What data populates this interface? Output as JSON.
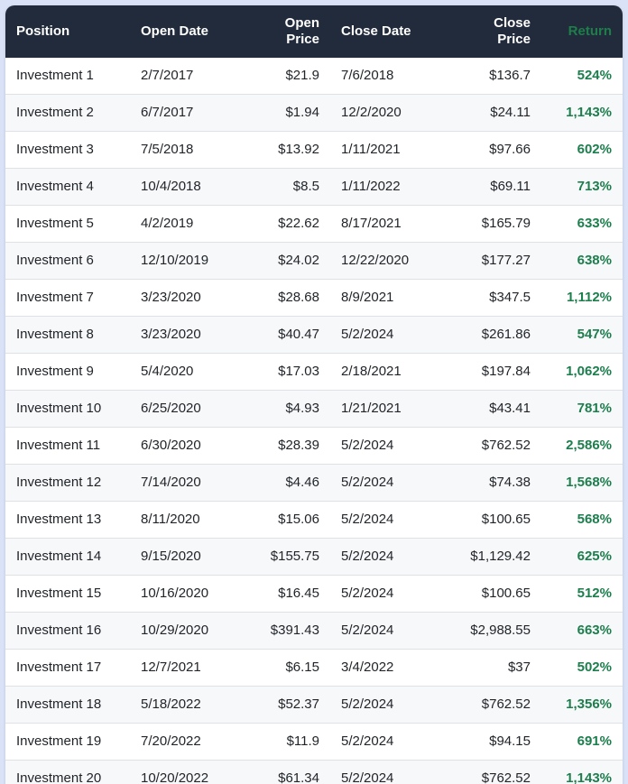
{
  "colors": {
    "page_background": "#d9e2f6",
    "card_background": "#ffffff",
    "header_background": "#212b3b",
    "header_text": "#ffffff",
    "return_green": "#1d7e4d",
    "body_text": "#212529",
    "row_stripe": "#f7f8fa",
    "row_divider": "#dee2e6"
  },
  "table": {
    "columns": [
      {
        "key": "position",
        "label": "Position",
        "align": "left"
      },
      {
        "key": "open_date",
        "label": "Open Date",
        "align": "left"
      },
      {
        "key": "open_price",
        "label": "Open Price",
        "align": "right"
      },
      {
        "key": "close_date",
        "label": "Close Date",
        "align": "left"
      },
      {
        "key": "close_price",
        "label": "Close Price",
        "align": "right"
      },
      {
        "key": "return",
        "label": "Return",
        "align": "right"
      }
    ],
    "rows": [
      {
        "position": "Investment 1",
        "open_date": "2/7/2017",
        "open_price": "$21.9",
        "close_date": "7/6/2018",
        "close_price": "$136.7",
        "return": "524%"
      },
      {
        "position": "Investment 2",
        "open_date": "6/7/2017",
        "open_price": "$1.94",
        "close_date": "12/2/2020",
        "close_price": "$24.11",
        "return": "1,143%"
      },
      {
        "position": "Investment 3",
        "open_date": "7/5/2018",
        "open_price": "$13.92",
        "close_date": "1/11/2021",
        "close_price": "$97.66",
        "return": "602%"
      },
      {
        "position": "Investment 4",
        "open_date": "10/4/2018",
        "open_price": "$8.5",
        "close_date": "1/11/2022",
        "close_price": "$69.11",
        "return": "713%"
      },
      {
        "position": "Investment 5",
        "open_date": "4/2/2019",
        "open_price": "$22.62",
        "close_date": "8/17/2021",
        "close_price": "$165.79",
        "return": "633%"
      },
      {
        "position": "Investment 6",
        "open_date": "12/10/2019",
        "open_price": "$24.02",
        "close_date": "12/22/2020",
        "close_price": "$177.27",
        "return": "638%"
      },
      {
        "position": "Investment 7",
        "open_date": "3/23/2020",
        "open_price": "$28.68",
        "close_date": "8/9/2021",
        "close_price": "$347.5",
        "return": "1,112%"
      },
      {
        "position": "Investment 8",
        "open_date": "3/23/2020",
        "open_price": "$40.47",
        "close_date": "5/2/2024",
        "close_price": "$261.86",
        "return": "547%"
      },
      {
        "position": "Investment 9",
        "open_date": "5/4/2020",
        "open_price": "$17.03",
        "close_date": "2/18/2021",
        "close_price": "$197.84",
        "return": "1,062%"
      },
      {
        "position": "Investment 10",
        "open_date": "6/25/2020",
        "open_price": "$4.93",
        "close_date": "1/21/2021",
        "close_price": "$43.41",
        "return": "781%"
      },
      {
        "position": "Investment 11",
        "open_date": "6/30/2020",
        "open_price": "$28.39",
        "close_date": "5/2/2024",
        "close_price": "$762.52",
        "return": "2,586%"
      },
      {
        "position": "Investment 12",
        "open_date": "7/14/2020",
        "open_price": "$4.46",
        "close_date": "5/2/2024",
        "close_price": "$74.38",
        "return": "1,568%"
      },
      {
        "position": "Investment 13",
        "open_date": "8/11/2020",
        "open_price": "$15.06",
        "close_date": "5/2/2024",
        "close_price": "$100.65",
        "return": "568%"
      },
      {
        "position": "Investment 14",
        "open_date": "9/15/2020",
        "open_price": "$155.75",
        "close_date": "5/2/2024",
        "close_price": "$1,129.42",
        "return": "625%"
      },
      {
        "position": "Investment 15",
        "open_date": "10/16/2020",
        "open_price": "$16.45",
        "close_date": "5/2/2024",
        "close_price": "$100.65",
        "return": "512%"
      },
      {
        "position": "Investment 16",
        "open_date": "10/29/2020",
        "open_price": "$391.43",
        "close_date": "5/2/2024",
        "close_price": "$2,988.55",
        "return": "663%"
      },
      {
        "position": "Investment 17",
        "open_date": "12/7/2021",
        "open_price": "$6.15",
        "close_date": "3/4/2022",
        "close_price": "$37",
        "return": "502%"
      },
      {
        "position": "Investment 18",
        "open_date": "5/18/2022",
        "open_price": "$52.37",
        "close_date": "5/2/2024",
        "close_price": "$762.52",
        "return": "1,356%"
      },
      {
        "position": "Investment 19",
        "open_date": "7/20/2022",
        "open_price": "$11.9",
        "close_date": "5/2/2024",
        "close_price": "$94.15",
        "return": "691%"
      },
      {
        "position": "Investment 20",
        "open_date": "10/20/2022",
        "open_price": "$61.34",
        "close_date": "5/2/2024",
        "close_price": "$762.52",
        "return": "1,143%"
      }
    ]
  }
}
